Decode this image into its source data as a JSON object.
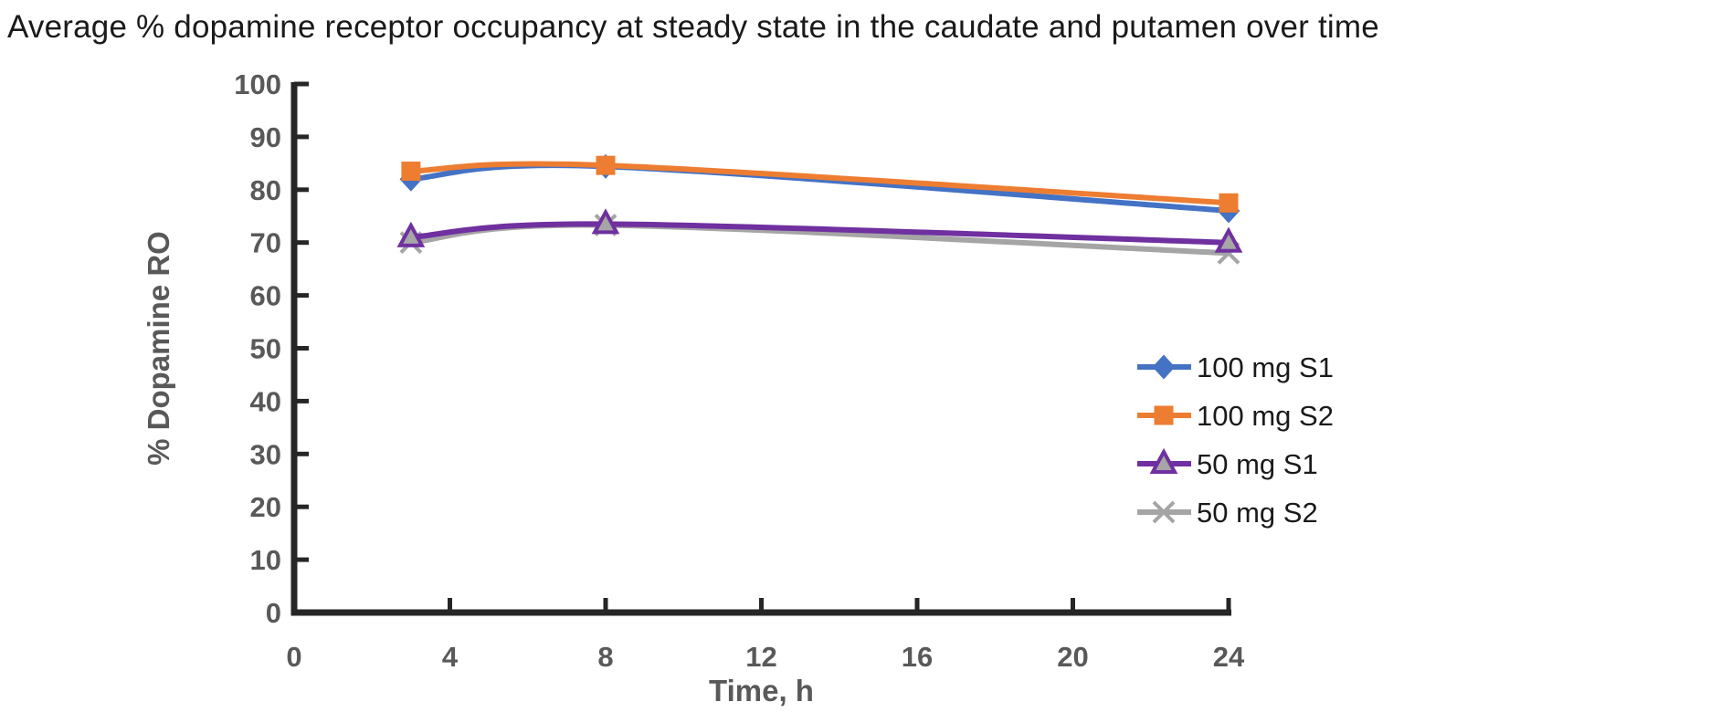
{
  "chart_data": {
    "type": "line",
    "title": "Average % dopamine receptor occupancy at steady state in the caudate and putamen over time",
    "xlabel": "Time, h",
    "ylabel": "% Dopamine RO",
    "x": [
      3,
      8,
      24
    ],
    "xlim": [
      0,
      24
    ],
    "ylim": [
      0,
      100
    ],
    "x_ticks": [
      0,
      4,
      8,
      12,
      16,
      20,
      24
    ],
    "y_ticks": [
      0,
      10,
      20,
      30,
      40,
      50,
      60,
      70,
      80,
      90,
      100
    ],
    "grid": false,
    "line_style": "smoothed",
    "legend_position": "right-middle",
    "series": [
      {
        "name": "100 mg S1",
        "color": "#4472C4",
        "marker": "diamond",
        "marker_fill": "#4472C4",
        "marker_stroke": "#4472C4",
        "values": [
          82,
          84.4,
          76
        ]
      },
      {
        "name": "100 mg S2",
        "color": "#ED7D31",
        "marker": "square",
        "marker_fill": "#ED7D31",
        "marker_stroke": "#ED7D31",
        "values": [
          83.5,
          84.6,
          77.5
        ]
      },
      {
        "name": "50 mg S1",
        "color": "#7030A0",
        "marker": "triangle",
        "marker_fill": "#A6A6A6",
        "marker_stroke": "#7030A0",
        "values": [
          71,
          73.5,
          70
        ]
      },
      {
        "name": "50 mg S2",
        "color": "#A5A5A5",
        "marker": "x",
        "marker_fill": "#A5A5A5",
        "marker_stroke": "#A5A5A5",
        "values": [
          70,
          73.3,
          68
        ]
      }
    ],
    "colors": {
      "axis": "#262626",
      "tick_labels": "#595959",
      "axis_titles": "#595959",
      "title_text": "#1a1a1a",
      "legend_text": "#1a1a1a",
      "background": "#ffffff"
    }
  }
}
